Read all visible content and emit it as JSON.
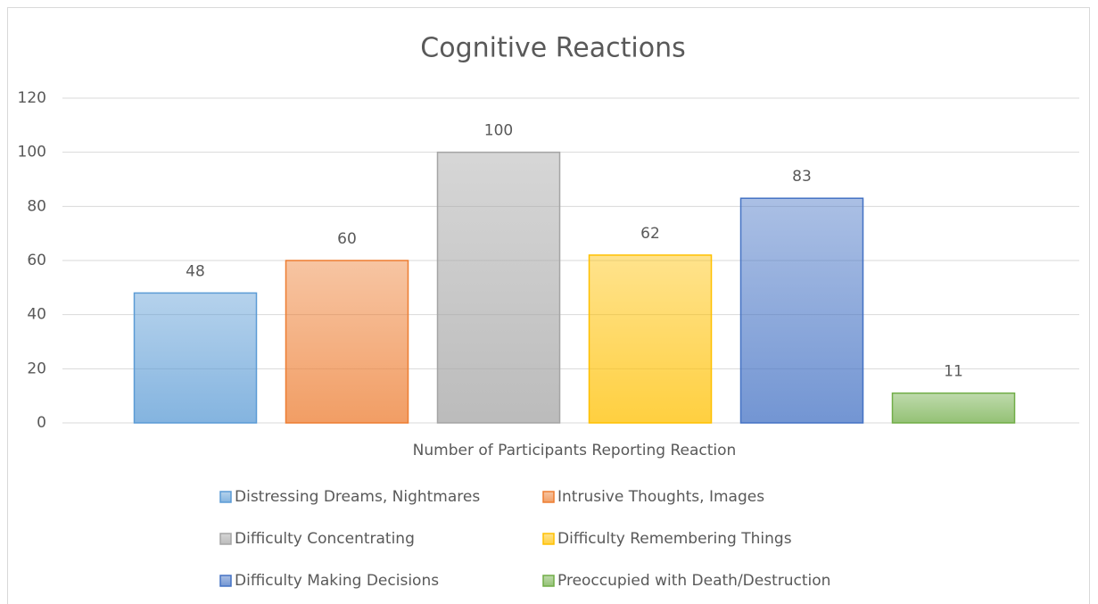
{
  "chart_data": {
    "type": "bar",
    "title": "Cognitive Reactions",
    "categories": [
      "Number of Participants Reporting Reaction"
    ],
    "series": [
      {
        "name": "Distressing Dreams, Nightmares",
        "color": "#5b9bd5",
        "values": [
          48
        ]
      },
      {
        "name": "Intrusive Thoughts, Images",
        "color": "#ed7d31",
        "values": [
          60
        ]
      },
      {
        "name": "Difficulty Concentrating",
        "color": "#a5a5a5",
        "values": [
          100
        ]
      },
      {
        "name": "Difficulty Remembering Things",
        "color": "#ffc000",
        "values": [
          62
        ]
      },
      {
        "name": "Difficulty Making Decisions",
        "color": "#4472c4",
        "values": [
          83
        ]
      },
      {
        "name": "Preoccupied with Death/Destruction",
        "color": "#70ad47",
        "values": [
          11
        ]
      }
    ],
    "ylim": [
      0,
      120
    ],
    "yticks": [
      0,
      20,
      40,
      60,
      80,
      100,
      120
    ],
    "grid": true,
    "legend": "bottom"
  }
}
